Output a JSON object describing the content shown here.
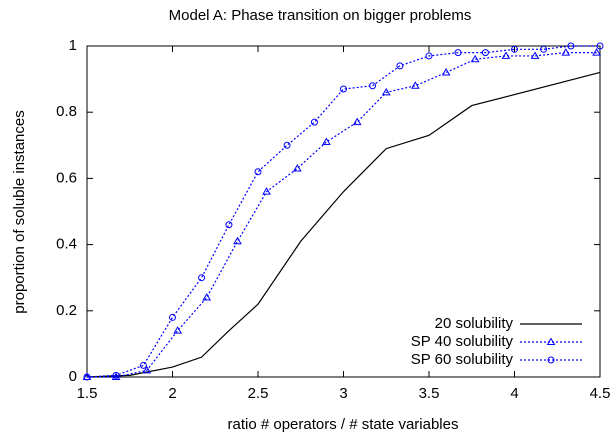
{
  "chart_data": {
    "type": "line",
    "title": "Model A: Phase transition on bigger problems",
    "x_label": "ratio # operators / # state variables",
    "y_label": "proportion of soluble instances",
    "xlim": [
      1.5,
      4.5
    ],
    "ylim": [
      0,
      1
    ],
    "xticks": [
      1.5,
      2,
      2.5,
      3,
      3.5,
      4,
      4.5
    ],
    "yticks": [
      0,
      0.2,
      0.4,
      0.6,
      0.8,
      1
    ],
    "legend_position": "lower right",
    "series": [
      {
        "name": "20 solubility",
        "color": "#000000",
        "label_color": "#000000",
        "line": "solid",
        "marker": "none",
        "x": [
          1.5,
          1.75,
          2.0,
          2.17,
          2.33,
          2.5,
          2.75,
          3.0,
          3.25,
          3.5,
          3.75,
          4.5
        ],
        "values": [
          0,
          0.005,
          0.03,
          0.06,
          0.14,
          0.22,
          0.41,
          0.56,
          0.69,
          0.73,
          0.82,
          0.92
        ]
      },
      {
        "name": "SP 40 solubility",
        "color": "#0000ff",
        "label_color": "#0000ff",
        "line": "dotted",
        "marker": "triangle",
        "x": [
          1.5,
          1.67,
          1.85,
          2.03,
          2.2,
          2.38,
          2.55,
          2.73,
          2.9,
          3.08,
          3.25,
          3.42,
          3.6,
          3.77,
          3.95,
          4.12,
          4.3,
          4.48
        ],
        "values": [
          0,
          0,
          0.02,
          0.14,
          0.24,
          0.41,
          0.56,
          0.63,
          0.71,
          0.77,
          0.86,
          0.88,
          0.92,
          0.96,
          0.97,
          0.97,
          0.98,
          0.98
        ]
      },
      {
        "name": "SP 60 solubility",
        "color": "#0000ff",
        "label_color": "#0000ff",
        "line": "dotted",
        "marker": "circle",
        "x": [
          1.5,
          1.67,
          1.83,
          2.0,
          2.17,
          2.33,
          2.5,
          2.67,
          2.83,
          3.0,
          3.17,
          3.33,
          3.5,
          3.67,
          3.83,
          4.0,
          4.17,
          4.33,
          4.5
        ],
        "values": [
          0,
          0.005,
          0.035,
          0.18,
          0.3,
          0.46,
          0.62,
          0.7,
          0.77,
          0.87,
          0.88,
          0.94,
          0.97,
          0.98,
          0.98,
          0.99,
          0.99,
          1,
          1
        ]
      }
    ]
  }
}
